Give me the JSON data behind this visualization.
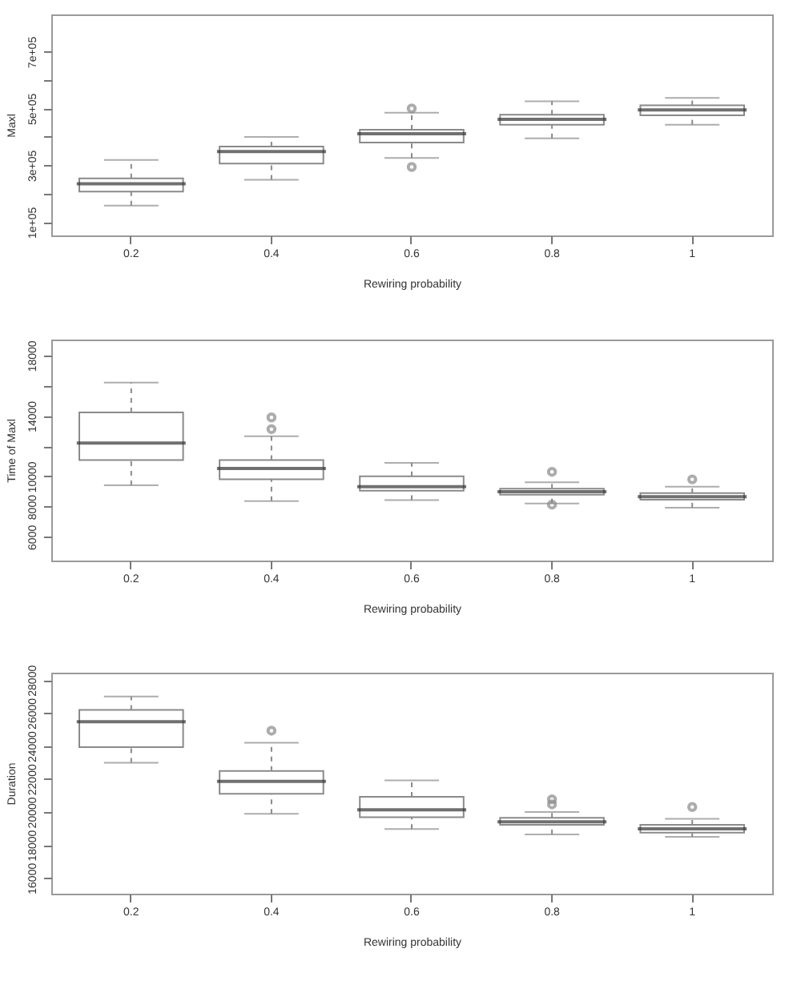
{
  "chart_data": [
    {
      "type": "box",
      "xlabel": "Rewiring probability",
      "ylabel": "Maxl",
      "categories": [
        "0.2",
        "0.4",
        "0.6",
        "0.8",
        "1"
      ],
      "ylim": [
        53000,
        831000
      ],
      "yticks": [
        {
          "value": 100000,
          "label": "1e+05"
        },
        {
          "value": 200000,
          "label": null
        },
        {
          "value": 300000,
          "label": "3e+05"
        },
        {
          "value": 400000,
          "label": null
        },
        {
          "value": 500000,
          "label": "5e+05"
        },
        {
          "value": 600000,
          "label": null
        },
        {
          "value": 700000,
          "label": "7e+05"
        }
      ],
      "boxes": [
        {
          "low": 158000,
          "q1": 207000,
          "median": 235000,
          "q3": 254000,
          "high": 319000
        },
        {
          "low": 249000,
          "q1": 306000,
          "median": 348000,
          "q3": 366000,
          "high": 400000
        },
        {
          "low": 326000,
          "q1": 380000,
          "median": 411000,
          "q3": 425000,
          "high": 485000,
          "outliers": [
            500000,
            294000
          ]
        },
        {
          "low": 395000,
          "q1": 443000,
          "median": 462000,
          "q3": 478000,
          "high": 525000
        },
        {
          "low": 443000,
          "q1": 476000,
          "median": 495000,
          "q3": 511000,
          "high": 537000
        }
      ]
    },
    {
      "type": "box",
      "xlabel": "Rewiring probability",
      "ylabel": "Time of Maxl",
      "categories": [
        "0.2",
        "0.4",
        "0.6",
        "0.8",
        "1"
      ],
      "ylim": [
        4430,
        19050
      ],
      "yticks": [
        6000,
        8000,
        10000,
        {
          "value": 12000,
          "label": null
        },
        14000,
        {
          "value": 16000,
          "label": null
        },
        18000
      ],
      "boxes": [
        {
          "low": 9410,
          "q1": 11080,
          "median": 12200,
          "q3": 14230,
          "high": 16200
        },
        {
          "low": 8360,
          "q1": 9800,
          "median": 10520,
          "q3": 11080,
          "high": 12660,
          "outliers": [
            13900,
            13120
          ]
        },
        {
          "low": 8430,
          "q1": 9050,
          "median": 9310,
          "q3": 10000,
          "high": 10890
        },
        {
          "low": 8200,
          "q1": 8790,
          "median": 8990,
          "q3": 9180,
          "high": 9610,
          "outliers": [
            10300,
            8130
          ]
        },
        {
          "low": 7930,
          "q1": 8460,
          "median": 8660,
          "q3": 8890,
          "high": 9310,
          "outliers": [
            9800
          ]
        }
      ]
    },
    {
      "type": "box",
      "xlabel": "Rewiring probability",
      "ylabel": "Duration",
      "categories": [
        "0.2",
        "0.4",
        "0.6",
        "0.8",
        "1"
      ],
      "ylim": [
        15040,
        28450
      ],
      "yticks": [
        16000,
        18000,
        20000,
        22000,
        24000,
        26000,
        28000
      ],
      "boxes": [
        {
          "low": 22990,
          "q1": 23930,
          "median": 25470,
          "q3": 26190,
          "high": 27000
        },
        {
          "low": 19890,
          "q1": 21100,
          "median": 21850,
          "q3": 22480,
          "high": 24200,
          "outliers": [
            24930
          ]
        },
        {
          "low": 18960,
          "q1": 19680,
          "median": 20130,
          "q3": 20920,
          "high": 21910
        },
        {
          "low": 18640,
          "q1": 19220,
          "median": 19400,
          "q3": 19640,
          "high": 20000,
          "outliers": [
            20760,
            20460
          ]
        },
        {
          "low": 18490,
          "q1": 18740,
          "median": 18980,
          "q3": 19220,
          "high": 19580,
          "outliers": [
            20300
          ]
        }
      ]
    }
  ]
}
